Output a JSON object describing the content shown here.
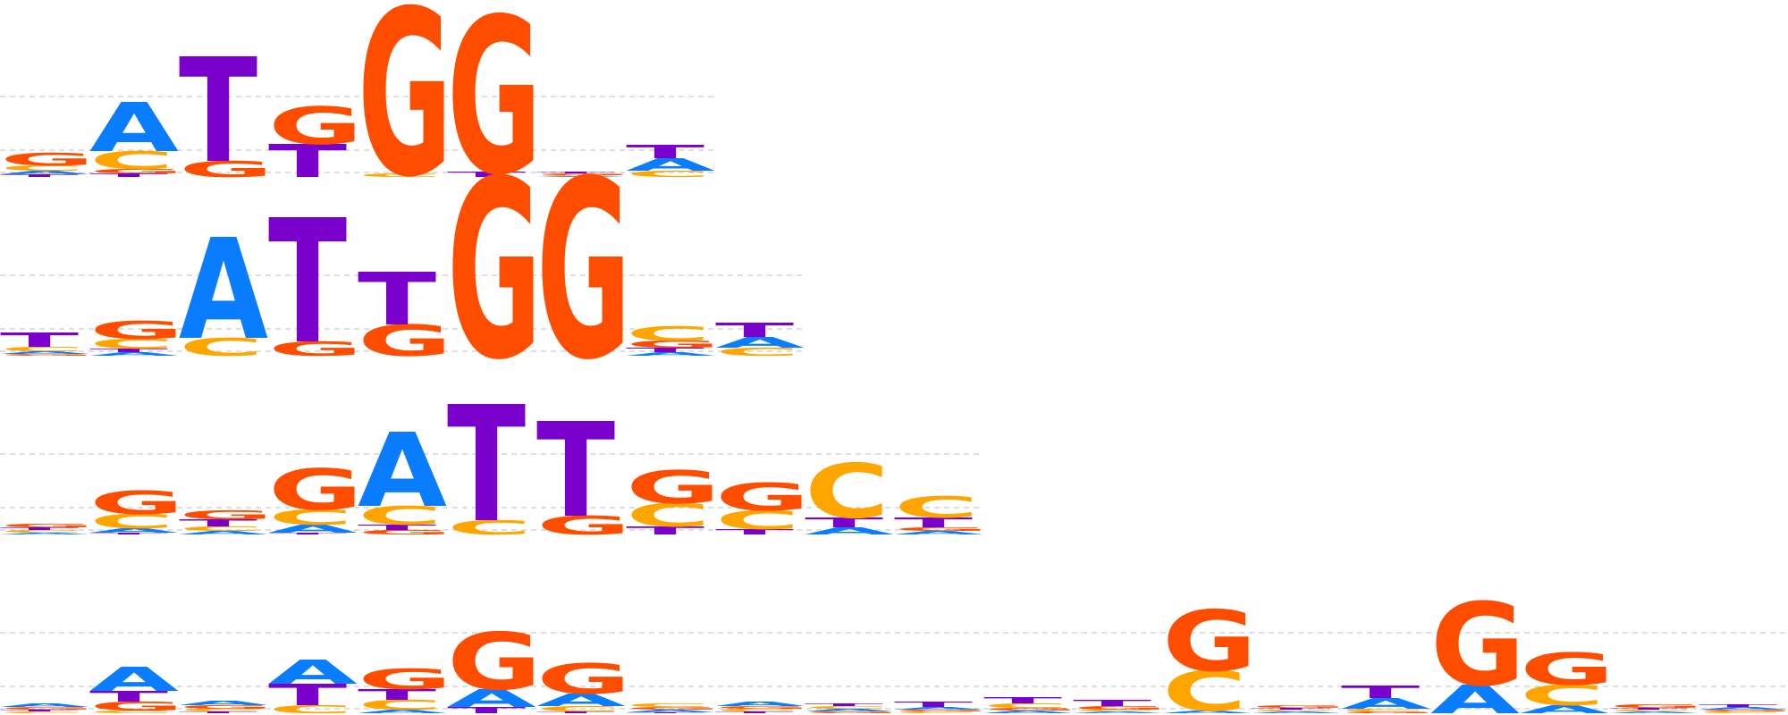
{
  "colors": {
    "A": "#0a7dff",
    "C": "#ffa500",
    "G": "#ff4d00",
    "T": "#7a00cc",
    "guide_line": "#bfbfbf",
    "background": "#ffffff"
  },
  "chart_data": {
    "type": "sequence-logo",
    "alphabet": [
      "A",
      "C",
      "G",
      "T"
    ],
    "value_unit": "bits",
    "max_bits": 2,
    "title": "",
    "xlabel": "",
    "ylabel": "",
    "logos": [
      {
        "name": "logo-1",
        "positions": [
          {
            "A": 0.04,
            "C": 0.06,
            "G": 0.14,
            "T": 0.03
          },
          {
            "A": 0.55,
            "C": 0.2,
            "G": 0.05,
            "T": 0.04
          },
          {
            "A": 0.0,
            "C": 0.0,
            "G": 0.18,
            "T": 1.17
          },
          {
            "A": 0.0,
            "C": 0.0,
            "G": 0.42,
            "T": 0.37
          },
          {
            "A": 0.0,
            "C": 0.04,
            "G": 1.86,
            "T": 0.0
          },
          {
            "A": 0.0,
            "C": 0.0,
            "G": 1.75,
            "T": 0.06
          },
          {
            "A": 0.01,
            "C": 0.01,
            "G": 0.02,
            "T": 0.02
          },
          {
            "A": 0.14,
            "C": 0.07,
            "G": 0.0,
            "T": 0.15
          }
        ]
      },
      {
        "name": "logo-2",
        "positions": [
          {
            "A": 0.03,
            "C": 0.05,
            "G": 0.02,
            "T": 0.16
          },
          {
            "A": 0.04,
            "C": 0.11,
            "G": 0.2,
            "T": 0.04
          },
          {
            "A": 1.13,
            "C": 0.2,
            "G": 0.0,
            "T": 0.0
          },
          {
            "A": 0.0,
            "C": 0.0,
            "G": 0.16,
            "T": 1.39
          },
          {
            "A": 0.0,
            "C": 0.0,
            "G": 0.35,
            "T": 0.59
          },
          {
            "A": 0.0,
            "C": 0.0,
            "G": 2.0,
            "T": 0.0
          },
          {
            "A": 0.0,
            "C": 0.0,
            "G": 2.0,
            "T": 0.0
          },
          {
            "A": 0.04,
            "C": 0.16,
            "G": 0.08,
            "T": 0.05
          },
          {
            "A": 0.12,
            "C": 0.09,
            "G": 0.0,
            "T": 0.16
          }
        ]
      },
      {
        "name": "logo-3",
        "positions": [
          {
            "A": 0.02,
            "C": 0.03,
            "G": 0.04,
            "T": 0.03
          },
          {
            "A": 0.05,
            "C": 0.16,
            "G": 0.26,
            "T": 0.02
          },
          {
            "A": 0.04,
            "C": 0.05,
            "G": 0.1,
            "T": 0.08
          },
          {
            "A": 0.09,
            "C": 0.17,
            "G": 0.46,
            "T": 0.02
          },
          {
            "A": 0.83,
            "C": 0.21,
            "G": 0.05,
            "T": 0.06
          },
          {
            "A": 0.0,
            "C": 0.16,
            "G": 0.0,
            "T": 1.3
          },
          {
            "A": 0.0,
            "C": 0.0,
            "G": 0.21,
            "T": 1.06
          },
          {
            "A": 0.0,
            "C": 0.26,
            "G": 0.37,
            "T": 0.09
          },
          {
            "A": 0.0,
            "C": 0.21,
            "G": 0.31,
            "T": 0.06
          },
          {
            "A": 0.08,
            "C": 0.61,
            "G": 0.0,
            "T": 0.11
          },
          {
            "A": 0.04,
            "C": 0.24,
            "G": 0.04,
            "T": 0.11
          }
        ]
      },
      {
        "name": "logo-4",
        "positions": [
          {
            "A": 0.04,
            "C": 0.02,
            "G": 0.03,
            "T": 0.02
          },
          {
            "A": 0.27,
            "C": 0.03,
            "G": 0.1,
            "T": 0.12
          },
          {
            "A": 0.05,
            "C": 0.03,
            "G": 0.04,
            "T": 0.02
          },
          {
            "A": 0.27,
            "C": 0.09,
            "G": 0.0,
            "T": 0.24
          },
          {
            "A": 0.04,
            "C": 0.11,
            "G": 0.23,
            "T": 0.12
          },
          {
            "A": 0.2,
            "C": 0.0,
            "G": 0.64,
            "T": 0.07
          },
          {
            "A": 0.14,
            "C": 0.06,
            "G": 0.34,
            "T": 0.02
          },
          {
            "A": 0.03,
            "C": 0.04,
            "G": 0.03,
            "T": 0.01
          },
          {
            "A": 0.05,
            "C": 0.03,
            "G": 0.03,
            "T": 0.02
          },
          {
            "A": 0.03,
            "C": 0.03,
            "G": 0.02,
            "T": 0.03
          },
          {
            "A": 0.03,
            "C": 0.02,
            "G": 0.02,
            "T": 0.06
          },
          {
            "A": 0.03,
            "C": 0.05,
            "G": 0.03,
            "T": 0.07
          },
          {
            "A": 0.02,
            "C": 0.02,
            "G": 0.04,
            "T": 0.07
          },
          {
            "A": 0.03,
            "C": 0.45,
            "G": 0.68,
            "T": 0.0
          },
          {
            "A": 0.02,
            "C": 0.02,
            "G": 0.03,
            "T": 0.02
          },
          {
            "A": 0.12,
            "C": 0.03,
            "G": 0.02,
            "T": 0.14
          },
          {
            "A": 0.32,
            "C": 0.0,
            "G": 0.93,
            "T": 0.0
          },
          {
            "A": 0.09,
            "C": 0.23,
            "G": 0.36,
            "T": 0.0
          },
          {
            "A": 0.02,
            "C": 0.02,
            "G": 0.04,
            "T": 0.02
          },
          {
            "A": 0.03,
            "C": 0.02,
            "G": 0.02,
            "T": 0.03
          }
        ]
      }
    ]
  }
}
